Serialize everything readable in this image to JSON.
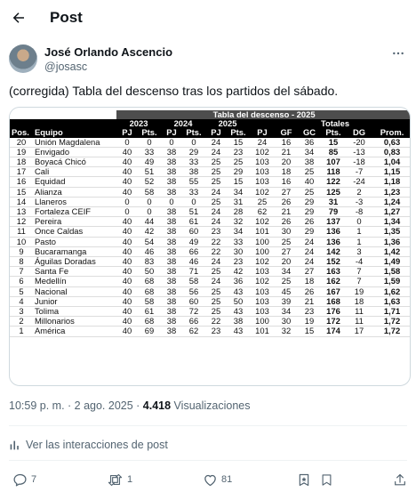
{
  "header": {
    "title": "Post",
    "back_icon": "arrow-left-icon"
  },
  "author": {
    "name": "José Orlando Ascencio",
    "handle": "@josasc"
  },
  "post": {
    "text": "(corregida) Tabla del descenso tras los partidos del sábado."
  },
  "table": {
    "title": "Tabla del descenso - 2025",
    "year_headers": [
      "2023",
      "2024",
      "2025",
      "Totales"
    ],
    "columns": [
      "Pos.",
      "Equipo",
      "PJ",
      "Pts.",
      "PJ",
      "Pts.",
      "PJ",
      "Pts.",
      "PJ",
      "GF",
      "GC",
      "Pts.",
      "DG",
      "Prom."
    ],
    "rows": [
      [
        "20",
        "Unión Magdalena",
        "0",
        "0",
        "0",
        "0",
        "24",
        "15",
        "24",
        "16",
        "36",
        "15",
        "-20",
        "0,63"
      ],
      [
        "19",
        "Envigado",
        "40",
        "33",
        "38",
        "29",
        "24",
        "23",
        "102",
        "21",
        "34",
        "85",
        "-13",
        "0,83"
      ],
      [
        "18",
        "Boyacá Chicó",
        "40",
        "49",
        "38",
        "33",
        "25",
        "25",
        "103",
        "20",
        "38",
        "107",
        "-18",
        "1,04"
      ],
      [
        "17",
        "Cali",
        "40",
        "51",
        "38",
        "38",
        "25",
        "29",
        "103",
        "18",
        "25",
        "118",
        "-7",
        "1,15"
      ],
      [
        "16",
        "Equidad",
        "40",
        "52",
        "38",
        "55",
        "25",
        "15",
        "103",
        "16",
        "40",
        "122",
        "-24",
        "1,18"
      ],
      [
        "15",
        "Alianza",
        "40",
        "58",
        "38",
        "33",
        "24",
        "34",
        "102",
        "27",
        "25",
        "125",
        "2",
        "1,23"
      ],
      [
        "14",
        "Llaneros",
        "0",
        "0",
        "0",
        "0",
        "25",
        "31",
        "25",
        "26",
        "29",
        "31",
        "-3",
        "1,24"
      ],
      [
        "13",
        "Fortaleza CEIF",
        "0",
        "0",
        "38",
        "51",
        "24",
        "28",
        "62",
        "21",
        "29",
        "79",
        "-8",
        "1,27"
      ],
      [
        "12",
        "Pereira",
        "40",
        "44",
        "38",
        "61",
        "24",
        "32",
        "102",
        "26",
        "26",
        "137",
        "0",
        "1,34"
      ],
      [
        "11",
        "Once Caldas",
        "40",
        "42",
        "38",
        "60",
        "23",
        "34",
        "101",
        "30",
        "29",
        "136",
        "1",
        "1,35"
      ],
      [
        "10",
        "Pasto",
        "40",
        "54",
        "38",
        "49",
        "22",
        "33",
        "100",
        "25",
        "24",
        "136",
        "1",
        "1,36"
      ],
      [
        "9",
        "Bucaramanga",
        "40",
        "46",
        "38",
        "66",
        "22",
        "30",
        "100",
        "27",
        "24",
        "142",
        "3",
        "1,42"
      ],
      [
        "8",
        "Águilas Doradas",
        "40",
        "83",
        "38",
        "46",
        "24",
        "23",
        "102",
        "20",
        "24",
        "152",
        "-4",
        "1,49"
      ],
      [
        "7",
        "Santa Fe",
        "40",
        "50",
        "38",
        "71",
        "25",
        "42",
        "103",
        "34",
        "27",
        "163",
        "7",
        "1,58"
      ],
      [
        "6",
        "Medellín",
        "40",
        "68",
        "38",
        "58",
        "24",
        "36",
        "102",
        "25",
        "18",
        "162",
        "7",
        "1,59"
      ],
      [
        "5",
        "Nacional",
        "40",
        "68",
        "38",
        "56",
        "25",
        "43",
        "103",
        "45",
        "26",
        "167",
        "19",
        "1,62"
      ],
      [
        "4",
        "Junior",
        "40",
        "58",
        "38",
        "60",
        "25",
        "50",
        "103",
        "39",
        "21",
        "168",
        "18",
        "1,63"
      ],
      [
        "3",
        "Tolima",
        "40",
        "61",
        "38",
        "72",
        "25",
        "43",
        "103",
        "34",
        "23",
        "176",
        "11",
        "1,71"
      ],
      [
        "2",
        "Millonarios",
        "40",
        "68",
        "38",
        "66",
        "22",
        "38",
        "100",
        "30",
        "19",
        "172",
        "11",
        "1,72"
      ],
      [
        "1",
        "América",
        "40",
        "69",
        "38",
        "62",
        "23",
        "43",
        "101",
        "32",
        "15",
        "174",
        "17",
        "1,72"
      ]
    ]
  },
  "meta": {
    "time_date": "10:59 p. m. · 2 ago. 2025 · ",
    "views_count": "4.418",
    "views_label": " Visualizaciones"
  },
  "interactions_label": "Ver las interacciones de post",
  "actions": {
    "replies": "7",
    "reposts": "1",
    "likes": "81"
  },
  "colors": {
    "accent": "#1d9bf0",
    "muted": "#536471",
    "table_header": "#000000",
    "table_title": "#4d4d4d"
  }
}
